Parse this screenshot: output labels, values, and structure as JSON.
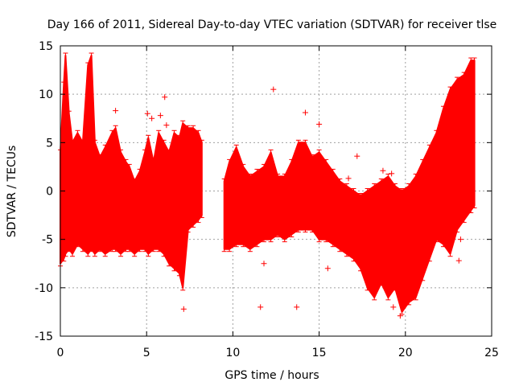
{
  "chart_data": {
    "type": "scatter",
    "title": "Day 166 of 2011, Sidereal Day-to-day VTEC variation (SDTVAR) for receiver tlse",
    "xlabel": "GPS time / hours",
    "ylabel": "SDTVAR / TECUs",
    "xlim": [
      0,
      25
    ],
    "ylim": [
      -15,
      15
    ],
    "xticks": [
      0,
      5,
      10,
      15,
      20,
      25
    ],
    "yticks": [
      -15,
      -10,
      -5,
      0,
      5,
      10,
      15
    ],
    "xtick_labels": [
      "0",
      "5",
      "10",
      "15",
      "20",
      "25"
    ],
    "ytick_labels": [
      "-15",
      "-10",
      "-5",
      "0",
      "5",
      "10",
      "15"
    ],
    "grid": true,
    "legend": "none",
    "marker": "+",
    "color": "#ff0000",
    "series": [
      {
        "name": "SDTVAR",
        "envelope": {
          "segments": [
            {
              "x": [
                0.0,
                0.2,
                0.3,
                0.5,
                0.7,
                1.0,
                1.3,
                1.6,
                1.8,
                2.0,
                2.3,
                2.6,
                3.0,
                3.2,
                3.5,
                3.8,
                4.0,
                4.3,
                4.6,
                4.9,
                5.1,
                5.4,
                5.7,
                6.0,
                6.3,
                6.6,
                6.9,
                7.1,
                7.4,
                7.7,
                8.0,
                8.2
              ],
              "upper": [
                4.0,
                11.0,
                14.0,
                8.0,
                5.0,
                6.0,
                5.0,
                13.0,
                14.0,
                5.0,
                3.5,
                4.5,
                6.0,
                6.5,
                4.0,
                3.0,
                2.5,
                1.0,
                2.0,
                4.0,
                5.5,
                3.0,
                6.0,
                5.0,
                4.0,
                6.0,
                5.5,
                7.0,
                6.5,
                6.5,
                6.0,
                5.0
              ],
              "lower": [
                -7.5,
                -7.0,
                -6.5,
                -6.0,
                -6.5,
                -5.5,
                -6.0,
                -6.5,
                -6.0,
                -6.5,
                -6.0,
                -6.5,
                -6.0,
                -6.0,
                -6.5,
                -6.0,
                -6.0,
                -6.5,
                -6.0,
                -6.0,
                -6.5,
                -6.0,
                -6.0,
                -6.5,
                -7.5,
                -8.0,
                -8.5,
                -10.0,
                -4.0,
                -3.5,
                -3.0,
                -2.5
              ]
            },
            {
              "x": [
                9.5,
                9.8,
                10.2,
                10.6,
                11.0,
                11.4,
                11.8,
                12.2,
                12.6,
                13.0,
                13.4,
                13.8,
                14.2,
                14.6,
                15.0,
                15.4,
                15.8,
                16.2,
                16.6,
                17.0,
                17.4,
                17.8,
                18.2,
                18.6,
                19.0,
                19.4,
                19.8,
                20.2,
                20.6,
                21.0,
                21.4,
                21.8,
                22.2,
                22.6,
                23.0,
                23.4,
                23.8,
                24.0
              ],
              "upper": [
                1.0,
                3.0,
                4.5,
                2.5,
                1.5,
                2.0,
                2.5,
                4.0,
                1.5,
                1.5,
                3.0,
                5.0,
                5.0,
                3.5,
                4.0,
                3.0,
                2.0,
                1.0,
                0.5,
                0.0,
                -0.5,
                0.0,
                0.5,
                1.0,
                1.5,
                0.5,
                0.0,
                0.5,
                1.5,
                3.0,
                4.5,
                6.0,
                8.5,
                10.5,
                11.5,
                12.0,
                13.5,
                13.5
              ],
              "lower": [
                -6.0,
                -6.0,
                -5.5,
                -5.5,
                -6.0,
                -5.5,
                -5.0,
                -5.0,
                -4.5,
                -5.0,
                -4.5,
                -4.0,
                -4.0,
                -4.0,
                -5.0,
                -5.0,
                -5.5,
                -6.0,
                -6.5,
                -7.0,
                -8.0,
                -10.0,
                -11.0,
                -9.5,
                -11.0,
                -10.0,
                -12.5,
                -11.5,
                -11.0,
                -9.0,
                -7.0,
                -5.0,
                -5.5,
                -6.5,
                -4.0,
                -3.0,
                -2.0,
                -1.5
              ]
            }
          ]
        },
        "outliers": [
          {
            "x": 5.05,
            "y": 8.0
          },
          {
            "x": 5.3,
            "y": 7.5
          },
          {
            "x": 5.8,
            "y": 7.8
          },
          {
            "x": 6.05,
            "y": 9.7
          },
          {
            "x": 6.15,
            "y": 6.8
          },
          {
            "x": 3.2,
            "y": 8.3
          },
          {
            "x": 7.15,
            "y": -12.2
          },
          {
            "x": 7.0,
            "y": -7.8
          },
          {
            "x": 12.35,
            "y": 10.5
          },
          {
            "x": 15.0,
            "y": 6.9
          },
          {
            "x": 14.2,
            "y": 8.1
          },
          {
            "x": 11.6,
            "y": -12.0
          },
          {
            "x": 13.7,
            "y": -12.0
          },
          {
            "x": 15.5,
            "y": -8.0
          },
          {
            "x": 11.8,
            "y": -7.5
          },
          {
            "x": 17.2,
            "y": 3.6
          },
          {
            "x": 16.7,
            "y": 1.3
          },
          {
            "x": 18.7,
            "y": 2.1
          },
          {
            "x": 19.2,
            "y": 1.8
          },
          {
            "x": 19.7,
            "y": -12.9
          },
          {
            "x": 19.3,
            "y": -12.0
          },
          {
            "x": 22.4,
            "y": -4.5
          },
          {
            "x": 23.1,
            "y": -7.2
          },
          {
            "x": 23.2,
            "y": -5.0
          }
        ]
      }
    ]
  }
}
